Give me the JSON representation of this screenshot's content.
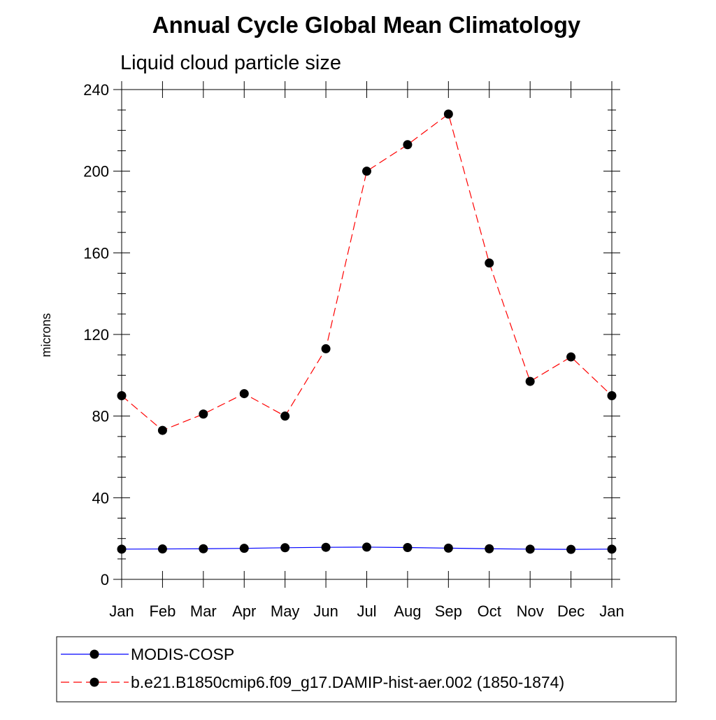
{
  "chart_data": {
    "type": "line",
    "title": "Annual Cycle Global Mean Climatology",
    "subtitle": "Liquid cloud particle size",
    "xlabel": "",
    "ylabel": "microns",
    "categories": [
      "Jan",
      "Feb",
      "Mar",
      "Apr",
      "May",
      "Jun",
      "Jul",
      "Aug",
      "Sep",
      "Oct",
      "Nov",
      "Dec",
      "Jan"
    ],
    "ylim": [
      0,
      240
    ],
    "yticks": [
      "0",
      "40",
      "80",
      "120",
      "160",
      "200",
      "240"
    ],
    "grid": false,
    "legend_position": "bottom",
    "series": [
      {
        "name": "MODIS-COSP",
        "color": "#0000ff",
        "line_style": "solid",
        "marker": "filled-circle",
        "values": [
          14.8,
          14.9,
          15.0,
          15.2,
          15.5,
          15.7,
          15.8,
          15.6,
          15.3,
          15.0,
          14.8,
          14.7,
          14.8
        ]
      },
      {
        "name": "b.e21.B1850cmip6.f09_g17.DAMIP-hist-aer.002 (1850-1874)",
        "color": "#ff0000",
        "line_style": "dashed",
        "marker": "filled-circle",
        "values": [
          90,
          73,
          81,
          91,
          80,
          113,
          200,
          213,
          228,
          155,
          97,
          109,
          90
        ]
      }
    ]
  }
}
